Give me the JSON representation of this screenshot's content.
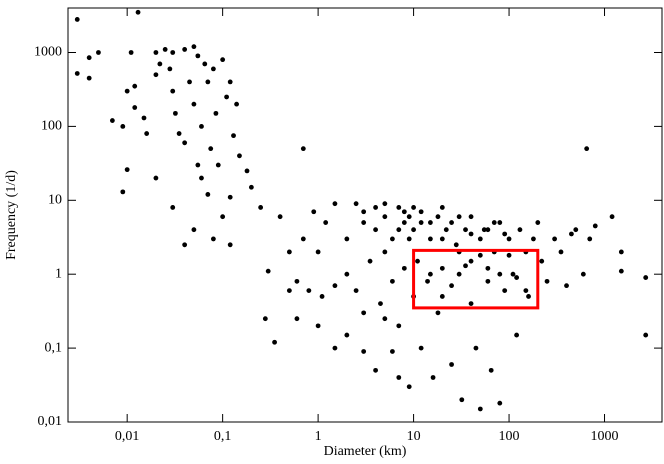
{
  "chart_data": {
    "type": "scatter",
    "x_label": "Diameter (km)",
    "y_label": "Frequency (1/d)",
    "log_x": true,
    "log_y": true,
    "color": "#000000",
    "xlim": [
      0.0024,
      4000
    ],
    "ylim": [
      0.01,
      4000
    ],
    "xticks": [
      {
        "value": 0.01,
        "label": "0,01"
      },
      {
        "value": 0.1,
        "label": "0,1"
      },
      1,
      10,
      100,
      1000
    ],
    "yticks": [
      {
        "value": 0.01,
        "label": "0,01"
      },
      {
        "value": 0.1,
        "label": "0,1"
      },
      1,
      10,
      100,
      1000
    ],
    "highlight_box": {
      "xlim": [
        10,
        200
      ],
      "ylim": [
        0.35,
        2.1
      ],
      "color": "#ff0000"
    },
    "x": [
      0.003,
      0.013,
      0.003,
      0.004,
      0.005,
      0.004,
      0.007,
      0.009,
      0.011,
      0.012,
      0.012,
      0.01,
      0.009,
      0.01,
      0.015,
      0.016,
      0.02,
      0.02,
      0.022,
      0.025,
      0.028,
      0.03,
      0.03,
      0.032,
      0.035,
      0.04,
      0.04,
      0.045,
      0.05,
      0.05,
      0.055,
      0.06,
      0.06,
      0.065,
      0.07,
      0.075,
      0.08,
      0.085,
      0.09,
      0.1,
      0.11,
      0.12,
      0.13,
      0.12,
      0.14,
      0.02,
      0.03,
      0.04,
      0.05,
      0.055,
      0.07,
      0.08,
      0.1,
      0.12,
      0.15,
      0.18,
      0.2,
      0.25,
      0.3,
      0.28,
      0.35,
      0.4,
      0.5,
      0.6,
      0.7,
      0.7,
      0.8,
      0.9,
      1,
      1.1,
      1.2,
      1.5,
      1.5,
      2,
      2,
      2.5,
      2.5,
      3,
      3,
      3.5,
      4,
      4,
      4.5,
      5,
      5,
      6,
      6,
      7,
      7,
      8,
      8,
      9,
      9,
      10,
      10,
      11,
      12,
      12,
      14,
      15,
      16,
      18,
      18,
      20,
      22,
      25,
      25,
      28,
      30,
      32,
      35,
      40,
      40,
      45,
      50,
      50,
      55,
      60,
      65,
      70,
      80,
      80,
      90,
      100,
      110,
      120,
      130,
      150,
      160,
      180,
      200,
      220,
      250,
      300,
      350,
      400,
      450,
      500,
      600,
      700,
      800,
      1200,
      1500,
      1500,
      2700,
      2700,
      650,
      3,
      4,
      5,
      6,
      7,
      8,
      9,
      10,
      12,
      15,
      20,
      20,
      25,
      30,
      35,
      40,
      50,
      60,
      70,
      90,
      15,
      30,
      40,
      60,
      80,
      100,
      120,
      150,
      20,
      2,
      1,
      0.6,
      0.5,
      1.5,
      3,
      5,
      7
    ],
    "values": [
      2800,
      3500,
      520,
      850,
      1000,
      450,
      120,
      100,
      1000,
      350,
      180,
      300,
      13,
      26,
      130,
      80,
      500,
      20,
      700,
      1100,
      600,
      1000,
      300,
      150,
      80,
      1100,
      60,
      400,
      1200,
      200,
      900,
      100,
      20,
      700,
      400,
      50,
      600,
      150,
      30,
      800,
      250,
      400,
      75,
      11,
      200,
      1000,
      8,
      2.5,
      4,
      30,
      12,
      3,
      6,
      2.5,
      40,
      25,
      15,
      8,
      1.1,
      0.25,
      0.12,
      6,
      2,
      0.8,
      50,
      3,
      0.6,
      7,
      2,
      0.5,
      5,
      0.7,
      9,
      0.15,
      3,
      0.6,
      9,
      0.3,
      5,
      1.5,
      0.05,
      8,
      0.4,
      2,
      6,
      0.8,
      0.09,
      4,
      0.2,
      1.2,
      7,
      0.03,
      3,
      0.5,
      8,
      1.5,
      0.1,
      5,
      0.8,
      3,
      0.04,
      6,
      0.3,
      1.2,
      4,
      0.06,
      0.7,
      2.5,
      6,
      0.02,
      1.3,
      3.5,
      0.4,
      0.1,
      1.8,
      0.015,
      4,
      0.8,
      0.05,
      2,
      5,
      0.018,
      0.6,
      3,
      1,
      0.15,
      4,
      2,
      0.5,
      3,
      5,
      1.5,
      0.8,
      3,
      2,
      0.7,
      3.5,
      4,
      1,
      3,
      4.5,
      6,
      2,
      1.1,
      0.15,
      0.9,
      50,
      7,
      4,
      9,
      3,
      8,
      5,
      6,
      4,
      7,
      5,
      3,
      8,
      5,
      2,
      4,
      6,
      3,
      4,
      5,
      3.5,
      1,
      1,
      1.5,
      1.2,
      1,
      1.8,
      0.9,
      0.6,
      0.5,
      1,
      0.2,
      0.25,
      0.6,
      0.1,
      0.09,
      0.25,
      0.04
    ]
  }
}
